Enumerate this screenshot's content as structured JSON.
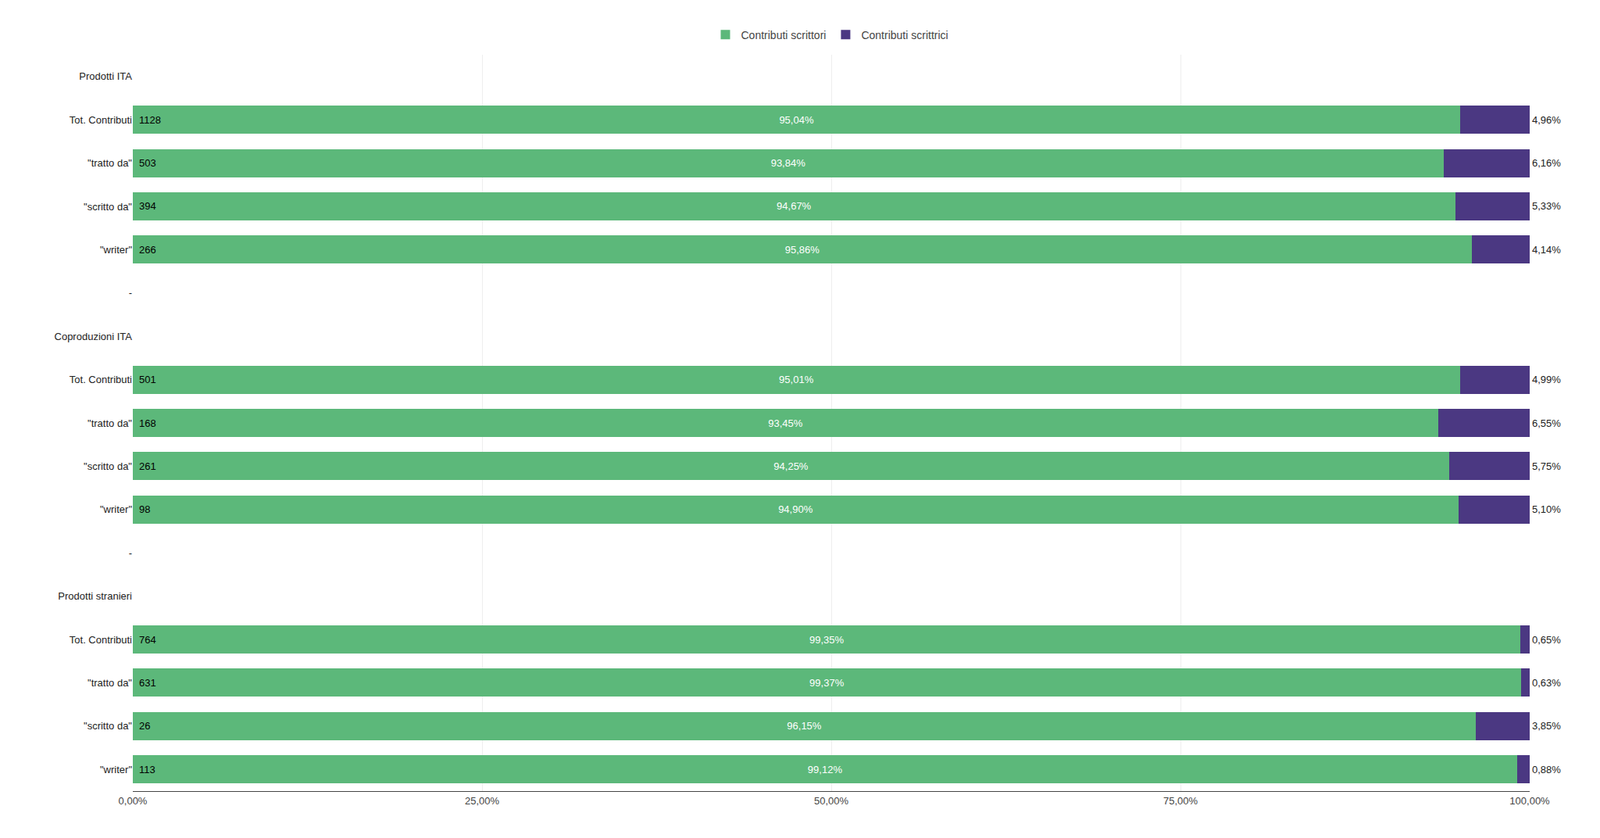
{
  "chart_data": {
    "type": "bar",
    "orientation": "horizontal",
    "stacked": true,
    "data_labels": true,
    "grid": true,
    "legend": "top",
    "categories": [
      "Prodotti ITA",
      "Tot. Contributi",
      "\"tratto da\"",
      "\"scritto da\"",
      "\"writer\"",
      "-",
      "Coproduzioni ITA",
      "Tot. Contributi",
      "\"tratto da\"",
      "\"scritto da\"",
      "\"writer\"",
      "-",
      "Prodotti stranieri",
      "Tot. Contributi",
      "\"tratto da\"",
      "\"scritto da\"",
      "\"writer\""
    ],
    "counts": [
      null,
      1128,
      503,
      394,
      266,
      null,
      null,
      501,
      168,
      261,
      98,
      null,
      null,
      764,
      631,
      26,
      113
    ],
    "series": [
      {
        "name": "Contributi scrittori",
        "color": "#5cb87a",
        "values": [
          null,
          95.04,
          93.84,
          94.67,
          95.86,
          null,
          null,
          95.01,
          93.45,
          94.25,
          94.9,
          null,
          null,
          99.35,
          99.37,
          96.15,
          99.12
        ],
        "value_labels": [
          null,
          "95,04%",
          "93,84%",
          "94,67%",
          "95,86%",
          null,
          null,
          "95,01%",
          "93,45%",
          "94,25%",
          "94,90%",
          null,
          null,
          "99,35%",
          "99,37%",
          "96,15%",
          "99,12%"
        ]
      },
      {
        "name": "Contributi scrittrici",
        "color": "#4b3882",
        "values": [
          null,
          4.96,
          6.16,
          5.33,
          4.14,
          null,
          null,
          4.99,
          6.55,
          5.75,
          5.1,
          null,
          null,
          0.65,
          0.63,
          3.85,
          0.88
        ],
        "value_labels": [
          null,
          "4,96%",
          "6,16%",
          "5,33%",
          "4,14%",
          null,
          null,
          "4,99%",
          "6,55%",
          "5,75%",
          "5,10%",
          null,
          null,
          "0,65%",
          "0,63%",
          "3,85%",
          "0,88%"
        ]
      }
    ],
    "xlim": [
      0,
      100
    ],
    "xticks": [
      {
        "value": 0,
        "label": "0,00%"
      },
      {
        "value": 25,
        "label": "25,00%"
      },
      {
        "value": 50,
        "label": "50,00%"
      },
      {
        "value": 75,
        "label": "75,00%"
      },
      {
        "value": 100,
        "label": "100,00%"
      }
    ]
  }
}
